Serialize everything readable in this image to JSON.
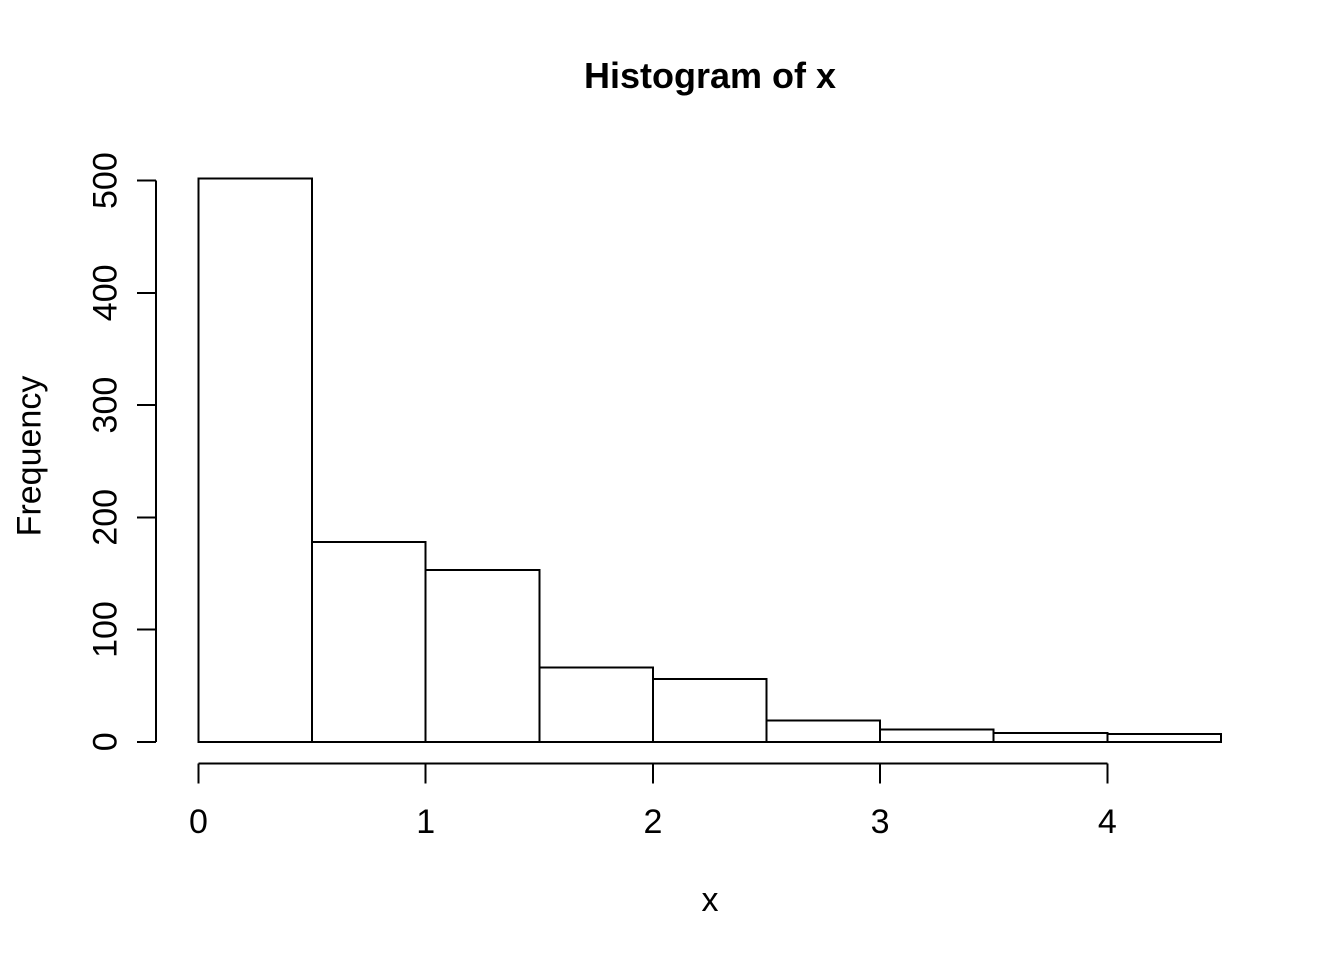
{
  "chart_data": {
    "type": "bar",
    "subtype": "histogram",
    "title": "Histogram of x",
    "xlabel": "x",
    "ylabel": "Frequency",
    "bin_edges": [
      0,
      0.5,
      1,
      1.5,
      2,
      2.5,
      3,
      3.5,
      4,
      4.5
    ],
    "counts": [
      502,
      178,
      153,
      66,
      56,
      19,
      11,
      8,
      7
    ],
    "x_ticks": [
      0,
      1,
      2,
      3,
      4
    ],
    "y_ticks": [
      0,
      100,
      200,
      300,
      400,
      500
    ],
    "xlim": [
      0,
      4.5
    ],
    "ylim": [
      0,
      500
    ],
    "grid": false,
    "legend": "none",
    "bar_fill": "#ffffff",
    "bar_stroke": "#000000",
    "axis_color": "#000000",
    "background": "#ffffff"
  }
}
